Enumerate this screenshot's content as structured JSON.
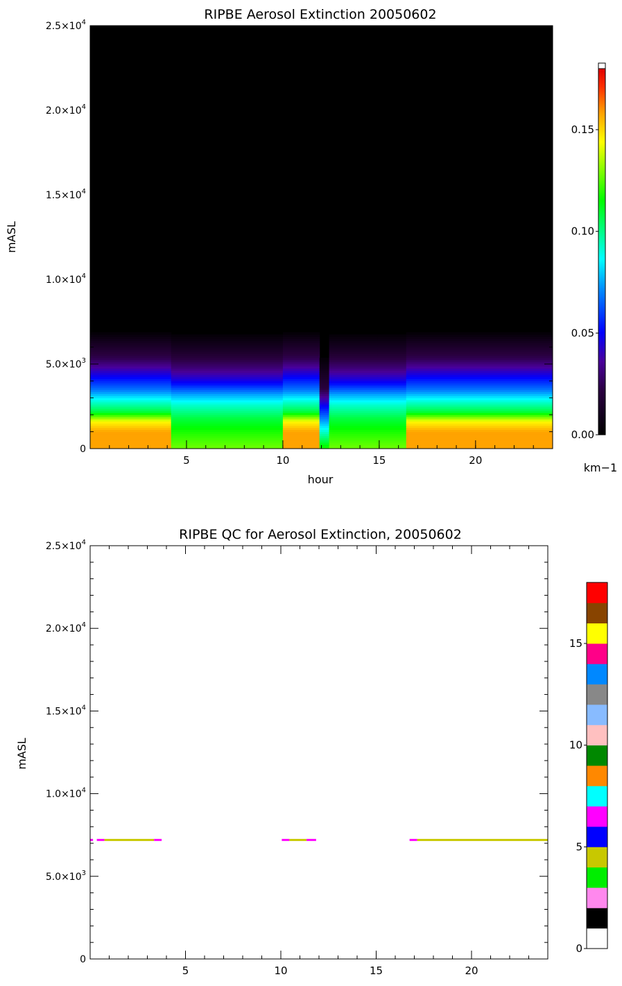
{
  "chart_data": [
    {
      "type": "heatmap",
      "title": "RIPBE Aerosol Extinction 20050602",
      "xlabel": "hour",
      "ylabel": "mASL",
      "xlim": [
        0,
        24
      ],
      "ylim": [
        0,
        25000
      ],
      "x_ticks": [
        {
          "value": 5,
          "label": "5"
        },
        {
          "value": 10,
          "label": "10"
        },
        {
          "value": 15,
          "label": "15"
        },
        {
          "value": 20,
          "label": "20"
        }
      ],
      "y_ticks": [
        {
          "value": 0,
          "mant": "0",
          "exp": ""
        },
        {
          "value": 5000,
          "mant": "5.0×10",
          "exp": "3"
        },
        {
          "value": 10000,
          "mant": "1.0×10",
          "exp": "4"
        },
        {
          "value": 15000,
          "mant": "1.5×10",
          "exp": "4"
        },
        {
          "value": 20000,
          "mant": "2.0×10",
          "exp": "4"
        },
        {
          "value": 25000,
          "mant": "2.5×10",
          "exp": "4"
        }
      ],
      "colorbar": {
        "min": 0,
        "max": 0.18,
        "unit": "km−1",
        "ticks": [
          {
            "value": 0.0,
            "label": "0.00"
          },
          {
            "value": 0.05,
            "label": "0.05"
          },
          {
            "value": 0.1,
            "label": "0.10"
          },
          {
            "value": 0.15,
            "label": "0.15"
          }
        ]
      },
      "time_segments": [
        {
          "start": 0,
          "end": 0.4,
          "profile": "high"
        },
        {
          "start": 0.4,
          "end": 4.2,
          "profile": "high"
        },
        {
          "start": 4.2,
          "end": 10.0,
          "profile": "mid"
        },
        {
          "start": 10.0,
          "end": 11.9,
          "profile": "high"
        },
        {
          "start": 11.9,
          "end": 12.4,
          "profile": "gap"
        },
        {
          "start": 12.4,
          "end": 14.9,
          "profile": "mid"
        },
        {
          "start": 14.9,
          "end": 16.4,
          "profile": "mid"
        },
        {
          "start": 16.4,
          "end": 24,
          "profile": "high"
        }
      ]
    },
    {
      "type": "heatmap",
      "title": "RIPBE QC for Aerosol Extinction, 20050602",
      "xlabel": "",
      "ylabel": "mASL",
      "xlim": [
        0,
        24
      ],
      "ylim": [
        0,
        25000
      ],
      "x_ticks": [
        {
          "value": 5,
          "label": "5"
        },
        {
          "value": 10,
          "label": "10"
        },
        {
          "value": 15,
          "label": "15"
        },
        {
          "value": 20,
          "label": "20"
        }
      ],
      "y_ticks": [
        {
          "value": 0,
          "mant": "0",
          "exp": ""
        },
        {
          "value": 5000,
          "mant": "5.0×10",
          "exp": "3"
        },
        {
          "value": 10000,
          "mant": "1.0×10",
          "exp": "4"
        },
        {
          "value": 15000,
          "mant": "1.5×10",
          "exp": "4"
        },
        {
          "value": 20000,
          "mant": "2.0×10",
          "exp": "4"
        },
        {
          "value": 25000,
          "mant": "2.5×10",
          "exp": "4"
        }
      ],
      "qc_altitude": 7200,
      "qc_segments": [
        {
          "start": 0.0,
          "end": 0.15,
          "color": "#ff00ff"
        },
        {
          "start": 0.35,
          "end": 0.75,
          "color": "#ff00ff"
        },
        {
          "start": 0.75,
          "end": 3.35,
          "color": "#c8c800"
        },
        {
          "start": 3.35,
          "end": 3.75,
          "color": "#ff00ff"
        },
        {
          "start": 10.05,
          "end": 10.45,
          "color": "#ff00ff"
        },
        {
          "start": 10.45,
          "end": 11.35,
          "color": "#c8c800"
        },
        {
          "start": 11.35,
          "end": 11.85,
          "color": "#ff00ff"
        },
        {
          "start": 16.75,
          "end": 17.15,
          "color": "#ff00ff"
        },
        {
          "start": 17.15,
          "end": 24.0,
          "color": "#c8c800"
        }
      ],
      "colorbar": {
        "min": 0,
        "max": 18,
        "colors": [
          "#ffffff",
          "#000000",
          "#ff88ee",
          "#00ee00",
          "#c8c800",
          "#0000ff",
          "#ff00ff",
          "#00ffff",
          "#ff8800",
          "#008800",
          "#ffc0c0",
          "#88bbff",
          "#888888",
          "#0088ff",
          "#ff0088",
          "#ffff00",
          "#884400",
          "#ff0000"
        ],
        "ticks": [
          {
            "value": 0,
            "label": "0"
          },
          {
            "value": 5,
            "label": "5"
          },
          {
            "value": 10,
            "label": "10"
          },
          {
            "value": 15,
            "label": "15"
          }
        ]
      }
    }
  ]
}
